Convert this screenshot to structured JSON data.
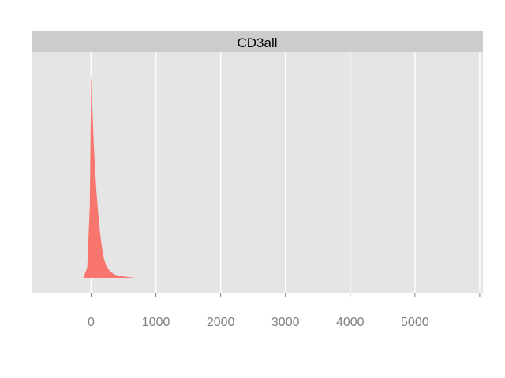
{
  "chart_data": {
    "type": "area",
    "panel_title": "CD3all",
    "title": "",
    "xlabel": "",
    "ylabel": "",
    "x_ticks": [
      0,
      1000,
      2000,
      3000,
      4000,
      5000
    ],
    "xlim": [
      -920,
      6050
    ],
    "ylim": [
      0,
      1.0
    ],
    "y_ticks_shown": false,
    "grid": true,
    "legend": "none",
    "series": [
      {
        "color": "#F8766D",
        "x": [
          -120,
          -60,
          -20,
          -5,
          0,
          5,
          10,
          15,
          25,
          40,
          60,
          80,
          100,
          120,
          140,
          160,
          180,
          200,
          220,
          240,
          270,
          300,
          340,
          380,
          430,
          480,
          540,
          600,
          680
        ],
        "y": [
          0.0,
          0.05,
          0.35,
          0.8,
          0.96,
          0.94,
          0.88,
          0.84,
          0.76,
          0.64,
          0.52,
          0.42,
          0.34,
          0.27,
          0.21,
          0.16,
          0.12,
          0.09,
          0.07,
          0.055,
          0.04,
          0.03,
          0.02,
          0.014,
          0.01,
          0.007,
          0.005,
          0.003,
          0.0
        ]
      }
    ]
  },
  "theme": {
    "panel_bg": "#E5E5E5",
    "strip_bg": "#CCCCCC",
    "grid_color": "#FFFFFF",
    "tick_label_color": "#7F7F7F"
  }
}
